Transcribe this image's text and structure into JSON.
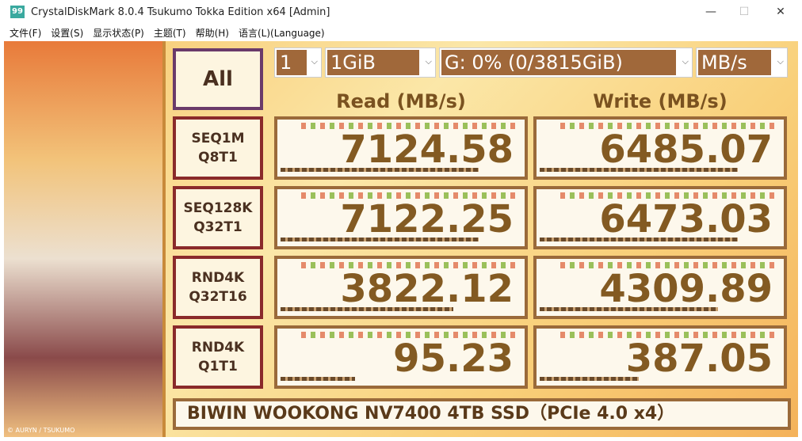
{
  "window": {
    "title": "CrystalDiskMark 8.0.4 Tsukumo Tokka Edition x64 [Admin]",
    "icon": "99",
    "minimize": "—",
    "maximize": "☐",
    "close": "✕"
  },
  "menu": [
    "文件(F)",
    "设置(S)",
    "显示状态(P)",
    "主题(T)",
    "帮助(H)",
    "语言(L)(Language)"
  ],
  "controls": {
    "all_label": "All",
    "count": "1",
    "size": "1GiB",
    "drive": "G: 0% (0/3815GiB)",
    "unit": "MB/s"
  },
  "headers": {
    "read": "Read (MB/s)",
    "write": "Write (MB/s)"
  },
  "tests": [
    {
      "line1": "SEQ1M",
      "line2": "Q8T1",
      "read": "7124.58",
      "write": "6485.07",
      "read_fill": 0.8,
      "write_fill": 0.8
    },
    {
      "line1": "SEQ128K",
      "line2": "Q32T1",
      "read": "7122.25",
      "write": "6473.03",
      "read_fill": 0.8,
      "write_fill": 0.8
    },
    {
      "line1": "RND4K",
      "line2": "Q32T16",
      "read": "3822.12",
      "write": "4309.89",
      "read_fill": 0.7,
      "write_fill": 0.72
    },
    {
      "line1": "RND4K",
      "line2": "Q1T1",
      "read": "95.23",
      "write": "387.05",
      "read_fill": 0.3,
      "write_fill": 0.4
    }
  ],
  "comment": "BIWIN WOOKONG NV7400 4TB SSD（PCIe 4.0 x4）",
  "art_credit": "© AURYN / TSUKUMO"
}
